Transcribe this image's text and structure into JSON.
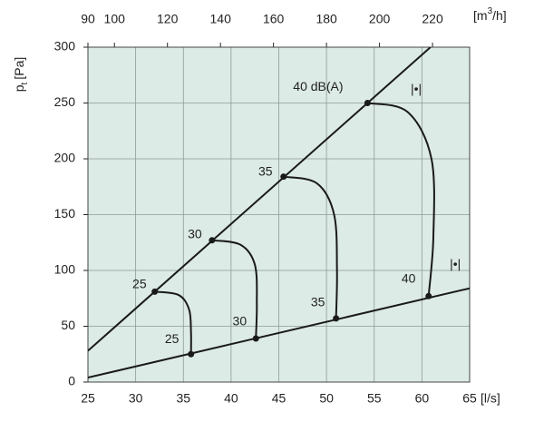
{
  "chart_data": {
    "type": "line",
    "xlabel": "[l/s]",
    "ylabel": {
      "symbol": "p",
      "subscript": "t",
      "unit": "[Pa]"
    },
    "x2label": {
      "text": "[m",
      "sup": "3",
      "rest": "/h]"
    },
    "xlim": [
      25,
      65
    ],
    "xticks": [
      25,
      30,
      35,
      40,
      45,
      50,
      55,
      60,
      65
    ],
    "ylim": [
      0,
      300
    ],
    "yticks": [
      0,
      50,
      100,
      150,
      200,
      250,
      300
    ],
    "x2lim": [
      90,
      234
    ],
    "x2ticks": [
      90,
      100,
      120,
      140,
      160,
      180,
      200,
      220
    ],
    "grid": true,
    "background": "#dcebe6",
    "color": "#1a1a1a",
    "lines": [
      {
        "x": [
          25,
          60.9
        ],
        "values": [
          28,
          300
        ]
      },
      {
        "x": [
          25,
          65
        ],
        "values": [
          4,
          84
        ]
      }
    ],
    "curves": [
      {
        "x": [
          32,
          34.5,
          35.6,
          35.8,
          35.8
        ],
        "values": [
          81,
          78,
          65,
          45,
          25
        ]
      },
      {
        "x": [
          38,
          41,
          42.5,
          42.7,
          42.6
        ],
        "values": [
          127,
          123,
          105,
          70,
          39
        ]
      },
      {
        "x": [
          45.5,
          49,
          50.8,
          51.1,
          51
        ],
        "values": [
          184,
          178,
          150,
          100,
          57
        ]
      },
      {
        "x": [
          54.3,
          58.5,
          61,
          61.2,
          60.7
        ],
        "values": [
          250,
          242,
          200,
          130,
          77
        ]
      }
    ],
    "annotations": [
      "25",
      "30",
      "35",
      "40 dB(A)",
      "25",
      "30",
      "35",
      "40",
      "|•|",
      "|•|"
    ]
  }
}
